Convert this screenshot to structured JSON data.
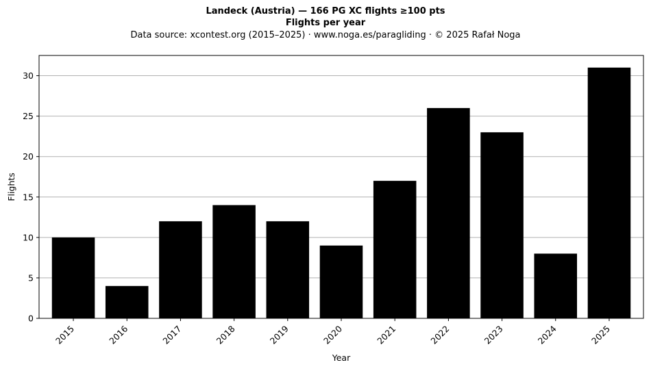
{
  "figure": {
    "title": "Landeck (Austria)  —  166 PG XC flights ≥100 pts",
    "subtitle": "Flights per year",
    "source": "Data source: xcontest.org (2015–2025)  ·  www.noga.es/paragliding  ·  © 2025 Rafał Noga"
  },
  "chart_data": {
    "type": "bar",
    "categories": [
      "2015",
      "2016",
      "2017",
      "2018",
      "2019",
      "2020",
      "2021",
      "2022",
      "2023",
      "2024",
      "2025"
    ],
    "values": [
      10,
      4,
      12,
      14,
      12,
      9,
      17,
      26,
      23,
      8,
      31
    ],
    "xlabel": "Year",
    "ylabel": "Flights",
    "ylim": [
      0,
      32.5
    ],
    "yticks": [
      0,
      5,
      10,
      15,
      20,
      25,
      30
    ],
    "grid": "y",
    "bar_color": "#000000",
    "grid_color": "#b0b0b0",
    "legend": "none"
  }
}
